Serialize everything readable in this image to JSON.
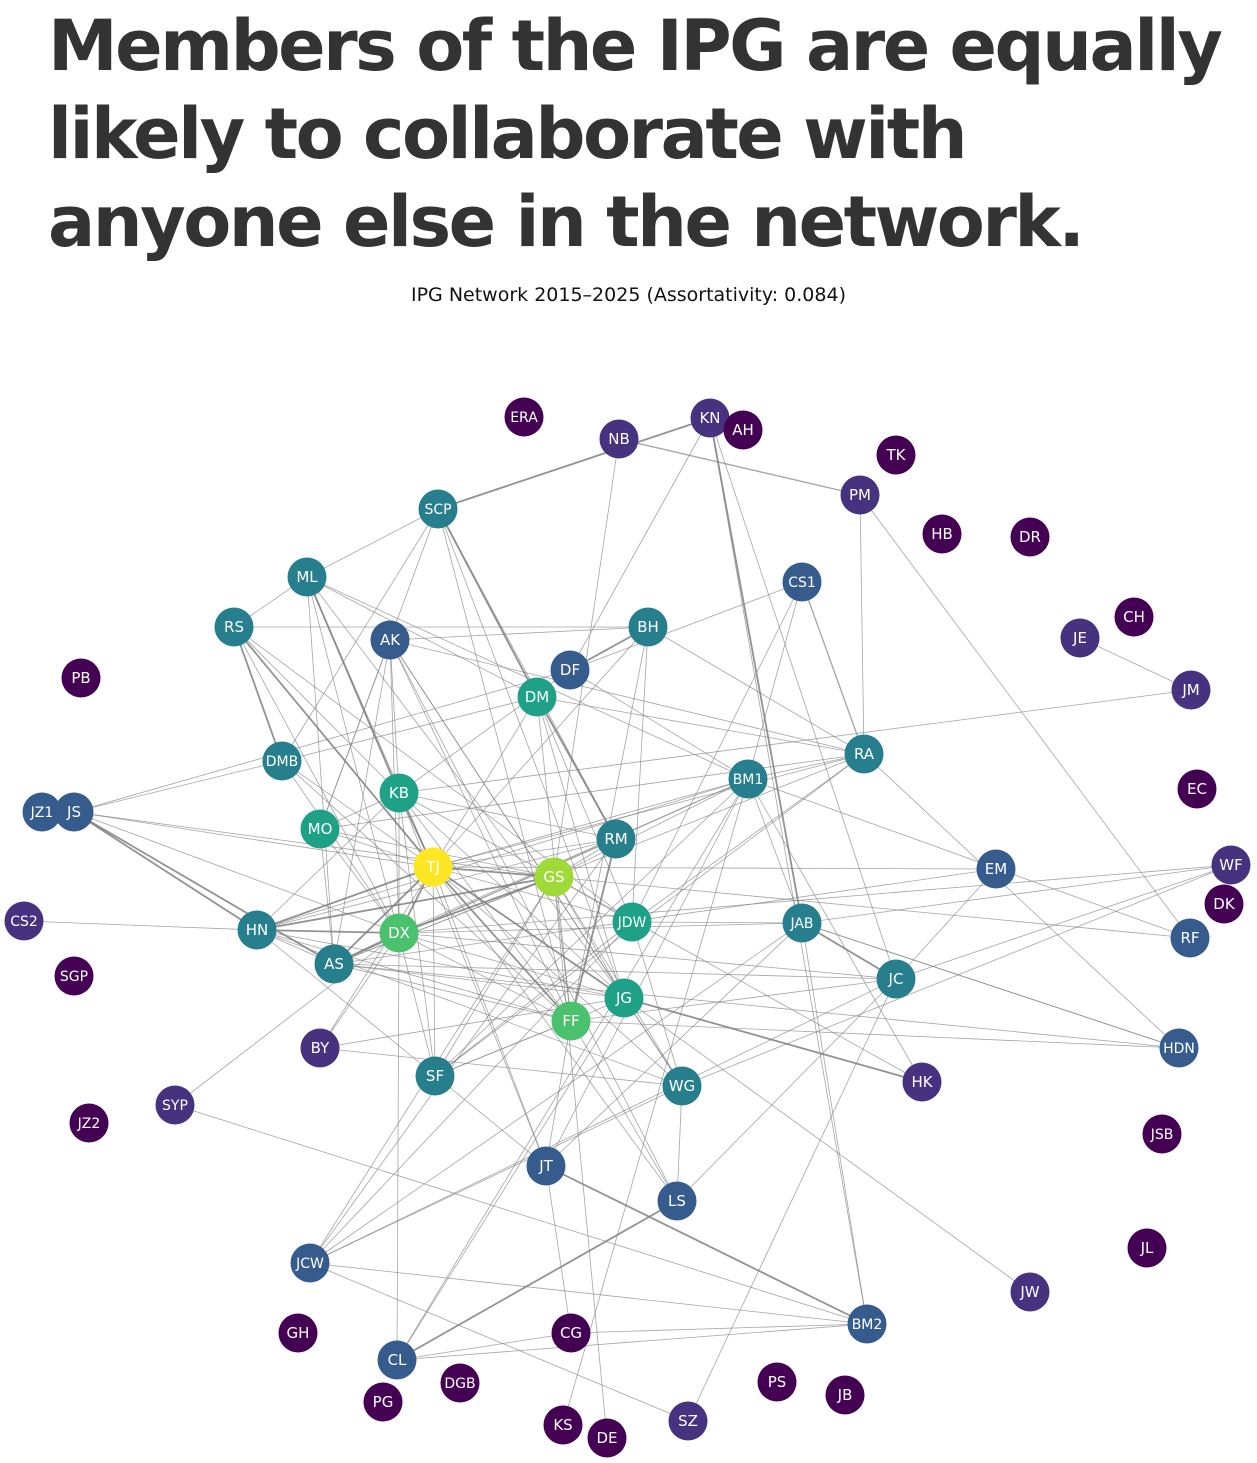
{
  "headline": "Members of the IPG are equally likely to collaborate with anyone else in the network.",
  "title": "IPG Network 2015–2025 (Assortativity: 0.084)",
  "colors": {
    "edge": "#7f7f7f",
    "node_label": "#ffffff",
    "palette": [
      "#440154",
      "#46327e",
      "#365c8d",
      "#277f8e",
      "#1fa187",
      "#4ac16d",
      "#a0da39",
      "#fde725"
    ]
  },
  "nodes": [
    {
      "id": "ERA",
      "level": 0
    },
    {
      "id": "NB",
      "level": 1
    },
    {
      "id": "KN",
      "level": 1
    },
    {
      "id": "AH",
      "level": 0
    },
    {
      "id": "TK",
      "level": 0
    },
    {
      "id": "PM",
      "level": 1
    },
    {
      "id": "HB",
      "level": 0
    },
    {
      "id": "DR",
      "level": 0
    },
    {
      "id": "SCP",
      "level": 3
    },
    {
      "id": "ML",
      "level": 3
    },
    {
      "id": "CS1",
      "level": 2
    },
    {
      "id": "CH",
      "level": 0
    },
    {
      "id": "RS",
      "level": 3
    },
    {
      "id": "AK",
      "level": 2
    },
    {
      "id": "BH",
      "level": 3
    },
    {
      "id": "JE",
      "level": 1
    },
    {
      "id": "DF",
      "level": 2
    },
    {
      "id": "PB",
      "level": 0
    },
    {
      "id": "DM",
      "level": 4
    },
    {
      "id": "JM",
      "level": 1
    },
    {
      "id": "RA",
      "level": 3
    },
    {
      "id": "DMB",
      "level": 3
    },
    {
      "id": "BM1",
      "level": 3
    },
    {
      "id": "EC",
      "level": 0
    },
    {
      "id": "KB",
      "level": 4
    },
    {
      "id": "JZ1",
      "level": 2
    },
    {
      "id": "JS",
      "level": 2
    },
    {
      "id": "MO",
      "level": 4
    },
    {
      "id": "RM",
      "level": 3
    },
    {
      "id": "EM",
      "level": 2
    },
    {
      "id": "TJ",
      "level": 7
    },
    {
      "id": "WF",
      "level": 1
    },
    {
      "id": "GS",
      "level": 6
    },
    {
      "id": "DK",
      "level": 0
    },
    {
      "id": "CS2",
      "level": 1
    },
    {
      "id": "HN",
      "level": 3
    },
    {
      "id": "DX",
      "level": 5
    },
    {
      "id": "JDW",
      "level": 4
    },
    {
      "id": "JAB",
      "level": 3
    },
    {
      "id": "RF",
      "level": 2
    },
    {
      "id": "AS",
      "level": 3
    },
    {
      "id": "JC",
      "level": 3
    },
    {
      "id": "SGP",
      "level": 0
    },
    {
      "id": "JG",
      "level": 4
    },
    {
      "id": "FF",
      "level": 5
    },
    {
      "id": "HDN",
      "level": 2
    },
    {
      "id": "BY",
      "level": 1
    },
    {
      "id": "SF",
      "level": 3
    },
    {
      "id": "HK",
      "level": 1
    },
    {
      "id": "WG",
      "level": 3
    },
    {
      "id": "SYP",
      "level": 1
    },
    {
      "id": "JZ2",
      "level": 0
    },
    {
      "id": "JSB",
      "level": 0
    },
    {
      "id": "JT",
      "level": 2
    },
    {
      "id": "LS",
      "level": 2
    },
    {
      "id": "JL",
      "level": 0
    },
    {
      "id": "JCW",
      "level": 2
    },
    {
      "id": "JW",
      "level": 1
    },
    {
      "id": "GH",
      "level": 0
    },
    {
      "id": "CG",
      "level": 0
    },
    {
      "id": "BM2",
      "level": 2
    },
    {
      "id": "CL",
      "level": 2
    },
    {
      "id": "DGB",
      "level": 0
    },
    {
      "id": "PS",
      "level": 0
    },
    {
      "id": "JB",
      "level": 0
    },
    {
      "id": "PG",
      "level": 0
    },
    {
      "id": "KS",
      "level": 0
    },
    {
      "id": "DE",
      "level": 0
    },
    {
      "id": "SZ",
      "level": 1
    }
  ],
  "edges": [
    [
      "SCP",
      "KN",
      2
    ],
    [
      "SCP",
      "ML",
      1
    ],
    [
      "SCP",
      "DMB",
      1
    ],
    [
      "SCP",
      "MO",
      1
    ],
    [
      "SCP",
      "DM",
      2
    ],
    [
      "SCP",
      "FF",
      1
    ],
    [
      "SCP",
      "JG",
      1
    ],
    [
      "SCP",
      "RM",
      1
    ],
    [
      "NB",
      "PM",
      1.5
    ],
    [
      "NB",
      "GS",
      1
    ],
    [
      "KN",
      "DF",
      1
    ],
    [
      "KN",
      "JAB",
      2
    ],
    [
      "KN",
      "BM2",
      1
    ],
    [
      "KN",
      "JC",
      1
    ],
    [
      "PM",
      "RA",
      1
    ],
    [
      "PM",
      "RF",
      1
    ],
    [
      "ML",
      "RS",
      1
    ],
    [
      "ML",
      "DM",
      1
    ],
    [
      "ML",
      "KB",
      2
    ],
    [
      "ML",
      "TJ",
      1
    ],
    [
      "ML",
      "JG",
      1
    ],
    [
      "ML",
      "AS",
      1
    ],
    [
      "ML",
      "BM1",
      1
    ],
    [
      "ML",
      "SF",
      1
    ],
    [
      "RS",
      "BH",
      1
    ],
    [
      "RS",
      "DMB",
      2
    ],
    [
      "RS",
      "KB",
      1
    ],
    [
      "RS",
      "TJ",
      2
    ],
    [
      "RS",
      "DX",
      1
    ],
    [
      "RS",
      "JDW",
      1
    ],
    [
      "AK",
      "BH",
      1
    ],
    [
      "AK",
      "KB",
      1
    ],
    [
      "AK",
      "DX",
      1
    ],
    [
      "AK",
      "FF",
      1
    ],
    [
      "AK",
      "JG",
      1
    ],
    [
      "AK",
      "LS",
      1
    ],
    [
      "AK",
      "AS",
      1
    ],
    [
      "AK",
      "WG",
      1
    ],
    [
      "AK",
      "MO",
      1
    ],
    [
      "AK",
      "RA",
      1
    ],
    [
      "BH",
      "DF",
      2
    ],
    [
      "BH",
      "TJ",
      1
    ],
    [
      "BH",
      "RA",
      1
    ],
    [
      "BH",
      "JDW",
      1
    ],
    [
      "BH",
      "FF",
      1
    ],
    [
      "DF",
      "CS1",
      1
    ],
    [
      "DF",
      "JS",
      1
    ],
    [
      "DF",
      "KB",
      1
    ],
    [
      "DF",
      "BM1",
      1
    ],
    [
      "DM",
      "RM",
      2
    ],
    [
      "DM",
      "TJ",
      1
    ],
    [
      "DM",
      "JG",
      1
    ],
    [
      "DM",
      "JDW",
      1
    ],
    [
      "DM",
      "FF",
      1
    ],
    [
      "DM",
      "DMB",
      1
    ],
    [
      "DM",
      "RA",
      1
    ],
    [
      "CS1",
      "JDW",
      1
    ],
    [
      "CS1",
      "RA",
      1.5
    ],
    [
      "CS1",
      "BM1",
      1
    ],
    [
      "JE",
      "JM",
      1
    ],
    [
      "JM",
      "KB",
      1
    ],
    [
      "RA",
      "MO",
      1
    ],
    [
      "RA",
      "AS",
      1
    ],
    [
      "RA",
      "JDW",
      1
    ],
    [
      "RA",
      "BM1",
      1
    ],
    [
      "RA",
      "TJ",
      1
    ],
    [
      "DMB",
      "JS",
      1
    ],
    [
      "DMB",
      "DX",
      1
    ],
    [
      "DMB",
      "TJ",
      1
    ],
    [
      "DMB",
      "FF",
      1
    ],
    [
      "BM1",
      "TJ",
      1
    ],
    [
      "BM1",
      "GS",
      1
    ],
    [
      "BM1",
      "JAB",
      1
    ],
    [
      "BM1",
      "HK",
      1
    ],
    [
      "BM1",
      "CL",
      1
    ],
    [
      "BM1",
      "HN",
      1
    ],
    [
      "BM1",
      "AS",
      1
    ],
    [
      "BM1",
      "DX",
      1
    ],
    [
      "BM1",
      "RF",
      1
    ],
    [
      "BM1",
      "JT",
      1
    ],
    [
      "KB",
      "MO",
      1
    ],
    [
      "KB",
      "TJ",
      2
    ],
    [
      "KB",
      "DX",
      1
    ],
    [
      "KB",
      "GS",
      1
    ],
    [
      "KB",
      "RM",
      1
    ],
    [
      "KB",
      "FF",
      1
    ],
    [
      "KB",
      "SF",
      1
    ],
    [
      "KB",
      "JT",
      1
    ],
    [
      "KB",
      "JG",
      1
    ],
    [
      "KB",
      "HN",
      1
    ],
    [
      "JS",
      "HN",
      2
    ],
    [
      "JS",
      "AS",
      2
    ],
    [
      "JS",
      "TJ",
      1
    ],
    [
      "JS",
      "GS",
      1
    ],
    [
      "JS",
      "DX",
      1
    ],
    [
      "MO",
      "TJ",
      1
    ],
    [
      "MO",
      "DX",
      1
    ],
    [
      "MO",
      "AS",
      1
    ],
    [
      "MO",
      "GS",
      1
    ],
    [
      "RM",
      "TJ",
      1
    ],
    [
      "RM",
      "GS",
      1
    ],
    [
      "RM",
      "FF",
      2
    ],
    [
      "RM",
      "AS",
      1
    ],
    [
      "RM",
      "HN",
      1
    ],
    [
      "EM",
      "TJ",
      1
    ],
    [
      "EM",
      "JC",
      1
    ],
    [
      "EM",
      "AS",
      1
    ],
    [
      "TJ",
      "GS",
      2
    ],
    [
      "TJ",
      "DX",
      2
    ],
    [
      "TJ",
      "AS",
      2
    ],
    [
      "TJ",
      "HN",
      2
    ],
    [
      "TJ",
      "FF",
      2
    ],
    [
      "TJ",
      "JG",
      2
    ],
    [
      "TJ",
      "JDW",
      1
    ],
    [
      "TJ",
      "WG",
      1
    ],
    [
      "TJ",
      "LS",
      1
    ],
    [
      "TJ",
      "JT",
      1
    ],
    [
      "TJ",
      "SF",
      1
    ],
    [
      "TJ",
      "BY",
      1
    ],
    [
      "WF",
      "JAB",
      1
    ],
    [
      "WF",
      "DX",
      1
    ],
    [
      "WF",
      "JC",
      1
    ],
    [
      "WF",
      "WG",
      1
    ],
    [
      "GS",
      "DX",
      2
    ],
    [
      "GS",
      "JG",
      1
    ],
    [
      "GS",
      "FF",
      1
    ],
    [
      "GS",
      "JDW",
      1
    ],
    [
      "GS",
      "HN",
      2
    ],
    [
      "GS",
      "AS",
      1
    ],
    [
      "GS",
      "SF",
      1
    ],
    [
      "GS",
      "HK",
      1
    ],
    [
      "GS",
      "JCW",
      1
    ],
    [
      "GS",
      "RF",
      1
    ],
    [
      "GS",
      "WG",
      1
    ],
    [
      "CS2",
      "HN",
      1
    ],
    [
      "HN",
      "DX",
      2
    ],
    [
      "HN",
      "AS",
      1
    ],
    [
      "HN",
      "JG",
      1
    ],
    [
      "HN",
      "FF",
      1
    ],
    [
      "HN",
      "WG",
      1
    ],
    [
      "DX",
      "JG",
      1
    ],
    [
      "DX",
      "AS",
      2
    ],
    [
      "DX",
      "FF",
      1
    ],
    [
      "DX",
      "JC",
      1
    ],
    [
      "DX",
      "JAB",
      1
    ],
    [
      "JDW",
      "JAB",
      1
    ],
    [
      "JDW",
      "WG",
      1
    ],
    [
      "JDW",
      "JCW",
      1
    ],
    [
      "JDW",
      "SF",
      1
    ],
    [
      "JAB",
      "JC",
      2
    ],
    [
      "JAB",
      "BM2",
      1
    ],
    [
      "JAB",
      "JT",
      1
    ],
    [
      "JAB",
      "HDN",
      1
    ],
    [
      "JAB",
      "JCW",
      1
    ],
    [
      "AS",
      "FF",
      1
    ],
    [
      "AS",
      "JG",
      1
    ],
    [
      "AS",
      "JC",
      1
    ],
    [
      "AS",
      "HDN",
      1
    ],
    [
      "JC",
      "LS",
      1
    ],
    [
      "JC",
      "JCW",
      1
    ],
    [
      "JC",
      "FF",
      1
    ],
    [
      "JG",
      "HK",
      2
    ],
    [
      "JG",
      "WG",
      1
    ],
    [
      "JG",
      "FF",
      1
    ],
    [
      "JG",
      "JW",
      1
    ],
    [
      "JG",
      "CL",
      1
    ],
    [
      "JG",
      "BY",
      1
    ],
    [
      "FF",
      "JT",
      1
    ],
    [
      "FF",
      "LS",
      1
    ],
    [
      "FF",
      "HDN",
      1
    ],
    [
      "FF",
      "SF",
      1
    ],
    [
      "HDN",
      "RA",
      1
    ],
    [
      "HDN",
      "JAB",
      1
    ],
    [
      "BY",
      "WG",
      1
    ],
    [
      "BY",
      "DX",
      1
    ],
    [
      "SF",
      "FF",
      1
    ],
    [
      "SF",
      "BM1",
      1
    ],
    [
      "SF",
      "RA",
      1
    ],
    [
      "WG",
      "LS",
      1
    ],
    [
      "WG",
      "JCW",
      1
    ],
    [
      "SYP",
      "DX",
      1
    ],
    [
      "SYP",
      "BM2",
      1
    ],
    [
      "JT",
      "BM2",
      2
    ],
    [
      "JT",
      "CG",
      1
    ],
    [
      "JT",
      "HN",
      1
    ],
    [
      "LS",
      "CL",
      2
    ],
    [
      "JCW",
      "BM2",
      1
    ],
    [
      "JCW",
      "SZ",
      1
    ],
    [
      "JCW",
      "RM",
      1
    ],
    [
      "CG",
      "CL",
      1
    ],
    [
      "CG",
      "BM2",
      1
    ],
    [
      "KS",
      "BM1",
      1
    ],
    [
      "DE",
      "GS",
      1
    ],
    [
      "SZ",
      "JC",
      1
    ],
    [
      "CL",
      "DX",
      1
    ],
    [
      "CL",
      "BM2",
      1
    ]
  ]
}
